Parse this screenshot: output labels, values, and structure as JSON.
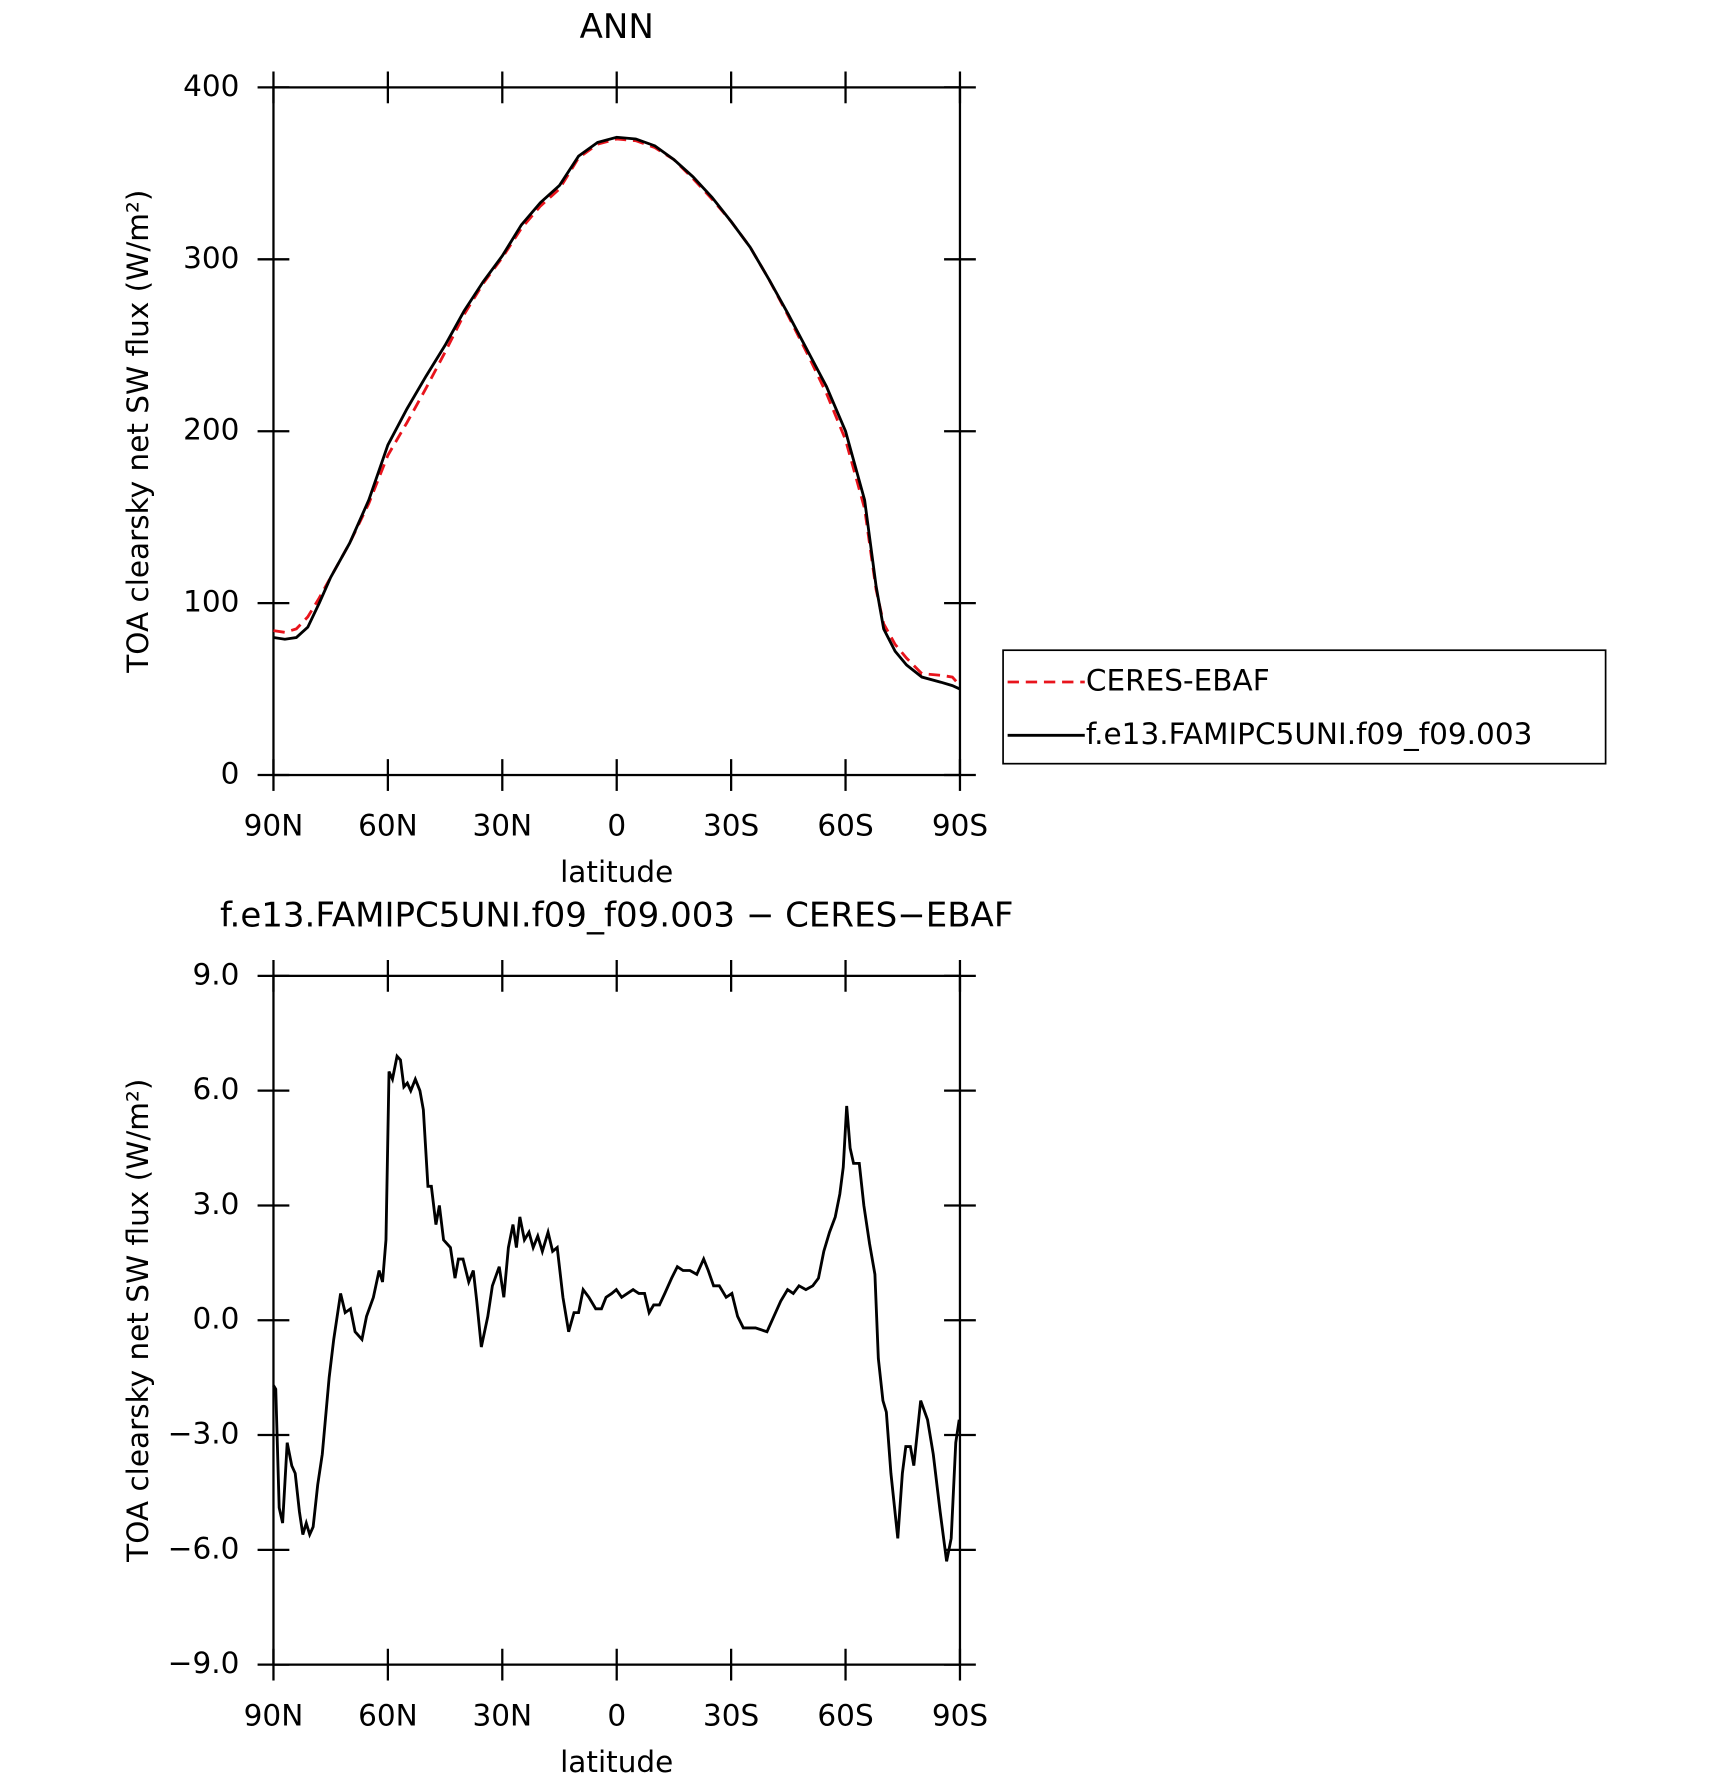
{
  "chart_data": [
    {
      "type": "line",
      "title": "ANN",
      "xlabel": "latitude",
      "ylabel": "TOA clearsky net SW flux (W/m²)",
      "x": [
        90,
        87,
        84,
        81,
        78,
        75,
        70,
        65,
        60,
        55,
        50,
        45,
        40,
        35,
        30,
        25,
        20,
        15,
        10,
        5,
        0,
        -5,
        -10,
        -15,
        -20,
        -25,
        -30,
        -35,
        -40,
        -45,
        -50,
        -55,
        -60,
        -65,
        -68,
        -70,
        -73,
        -76,
        -80,
        -85,
        -88,
        -90
      ],
      "series": [
        {
          "name": "CERES-EBAF",
          "color": "#e8141c",
          "dash": true,
          "values": [
            84,
            83,
            85,
            92,
            103,
            115,
            135,
            158,
            186,
            205,
            225,
            246,
            268,
            286,
            301,
            318,
            331,
            341,
            359,
            367,
            370,
            369,
            365,
            358,
            347,
            335,
            322,
            307,
            288,
            267,
            245,
            222,
            195,
            155,
            108,
            88,
            76,
            68,
            59,
            58,
            57,
            52
          ]
        },
        {
          "name": "f.e13.FAMIPC5UNI.f09_f09.003",
          "color": "#000000",
          "dash": false,
          "values": [
            80,
            79,
            80,
            86,
            100,
            115,
            135,
            160,
            192,
            213,
            232,
            250,
            270,
            287,
            302,
            320,
            333,
            343,
            360,
            368,
            371,
            370,
            366,
            358,
            348,
            336,
            322,
            307,
            288,
            268,
            247,
            226,
            200,
            160,
            110,
            85,
            72,
            64,
            57,
            54,
            52,
            50
          ]
        }
      ],
      "xlim": [
        90,
        -90
      ],
      "xticks": [
        {
          "value": 90,
          "label": "90N"
        },
        {
          "value": 60,
          "label": "60N"
        },
        {
          "value": 30,
          "label": "30N"
        },
        0,
        {
          "value": -30,
          "label": "30S"
        },
        {
          "value": -60,
          "label": "60S"
        },
        {
          "value": -90,
          "label": "90S"
        }
      ],
      "ylim": [
        0,
        400
      ],
      "yticks": [
        0,
        100,
        200,
        300,
        400
      ],
      "legend": "right"
    },
    {
      "type": "line",
      "title": "f.e13.FAMIPC5UNI.f09_f09.003 − CERES−EBAF",
      "xlabel": "latitude",
      "ylabel": "TOA clearsky net SW flux (W/m²)",
      "x": [
        90,
        89.4,
        88.5,
        87.6,
        86.4,
        85.2,
        84.3,
        83.2,
        82.3,
        81.4,
        80.5,
        79.6,
        78.4,
        77.2,
        75.4,
        74.2,
        72.4,
        71.2,
        69.8,
        68.6,
        66.8,
        65.6,
        63.8,
        62.3,
        61.4,
        60.5,
        59.7,
        58.8,
        57.6,
        56.7,
        55.8,
        54.9,
        54.0,
        52.8,
        51.6,
        50.7,
        49.5,
        48.6,
        47.4,
        46.5,
        45.4,
        43.6,
        42.4,
        41.5,
        40.3,
        38.8,
        37.6,
        36.7,
        35.5,
        33.8,
        32.6,
        30.8,
        29.6,
        28.4,
        27.2,
        26.3,
        25.4,
        24.2,
        23.0,
        21.9,
        20.7,
        19.5,
        18.0,
        16.8,
        15.6,
        14.1,
        12.6,
        11.2,
        10.0,
        8.8,
        7.3,
        5.5,
        4.0,
        2.8,
        1.3,
        0.1,
        -1.3,
        -2.8,
        -4.3,
        -5.8,
        -7.3,
        -8.5,
        -9.7,
        -11.2,
        -12.6,
        -14.4,
        -15.9,
        -17.4,
        -19.2,
        -21.0,
        -22.8,
        -24.0,
        -25.4,
        -26.9,
        -28.7,
        -30.2,
        -31.7,
        -33.2,
        -34.6,
        -36.4,
        -39.4,
        -41.2,
        -43.0,
        -44.8,
        -46.3,
        -47.8,
        -49.6,
        -51.4,
        -52.9,
        -54.3,
        -55.8,
        -57.3,
        -58.5,
        -59.4,
        -60.3,
        -61.2,
        -62.1,
        -63.6,
        -64.8,
        -66.3,
        -67.7,
        -68.6,
        -69.8,
        -70.7,
        -71.9,
        -73.7,
        -74.9,
        -75.8,
        -77.0,
        -77.9,
        -79.7,
        -81.5,
        -83.0,
        -84.8,
        -86.5,
        -87.7,
        -88.9,
        -89.8
      ],
      "series": [
        {
          "name": "f.e13.FAMIPC5UNI.f09_f09.003",
          "color": "#000000",
          "dash": false,
          "values": [
            -1.7,
            -1.8,
            -4.9,
            -5.3,
            -3.2,
            -3.8,
            -4.0,
            -5.0,
            -5.6,
            -5.3,
            -5.6,
            -5.4,
            -4.3,
            -3.5,
            -1.5,
            -0.5,
            0.7,
            0.2,
            0.3,
            -0.3,
            -0.5,
            0.1,
            0.6,
            1.3,
            1.0,
            2.1,
            6.5,
            6.3,
            6.9,
            6.8,
            6.1,
            6.2,
            6.0,
            6.3,
            6.0,
            5.5,
            3.5,
            3.5,
            2.5,
            3.0,
            2.1,
            1.9,
            1.1,
            1.6,
            1.6,
            1.0,
            1.3,
            0.5,
            -0.7,
            0.1,
            0.9,
            1.4,
            0.6,
            1.9,
            2.5,
            1.9,
            2.7,
            2.1,
            2.3,
            1.9,
            2.2,
            1.8,
            2.3,
            1.8,
            1.9,
            0.6,
            -0.3,
            0.2,
            0.2,
            0.8,
            0.6,
            0.3,
            0.3,
            0.6,
            0.7,
            0.8,
            0.6,
            0.7,
            0.8,
            0.7,
            0.7,
            0.2,
            0.4,
            0.4,
            0.7,
            1.1,
            1.4,
            1.3,
            1.3,
            1.2,
            1.6,
            1.3,
            0.9,
            0.9,
            0.6,
            0.7,
            0.1,
            -0.2,
            -0.2,
            -0.2,
            -0.3,
            0.1,
            0.5,
            0.8,
            0.7,
            0.9,
            0.8,
            0.9,
            1.1,
            1.8,
            2.3,
            2.7,
            3.3,
            4.0,
            5.6,
            4.5,
            4.1,
            4.1,
            3.0,
            2.0,
            1.2,
            -1.0,
            -2.1,
            -2.4,
            -4.0,
            -5.7,
            -4.0,
            -3.3,
            -3.3,
            -3.8,
            -2.1,
            -2.6,
            -3.5,
            -5.0,
            -6.3,
            -5.7,
            -3.2,
            -2.6
          ]
        }
      ],
      "xlim": [
        90,
        -90
      ],
      "xticks": [
        {
          "value": 90,
          "label": "90N"
        },
        {
          "value": 60,
          "label": "60N"
        },
        {
          "value": 30,
          "label": "30N"
        },
        0,
        {
          "value": -30,
          "label": "30S"
        },
        {
          "value": -60,
          "label": "60S"
        },
        {
          "value": -90,
          "label": "90S"
        }
      ],
      "ylim": [
        -9,
        9
      ],
      "yticks": [
        {
          "value": -9,
          "label": "−9.0"
        },
        {
          "value": -6,
          "label": "−6.0"
        },
        {
          "value": -3,
          "label": "−3.0"
        },
        {
          "value": 0,
          "label": "0.0"
        },
        {
          "value": 3,
          "label": "3.0"
        },
        {
          "value": 6,
          "label": "6.0"
        },
        {
          "value": 9,
          "label": "9.0"
        }
      ]
    }
  ]
}
